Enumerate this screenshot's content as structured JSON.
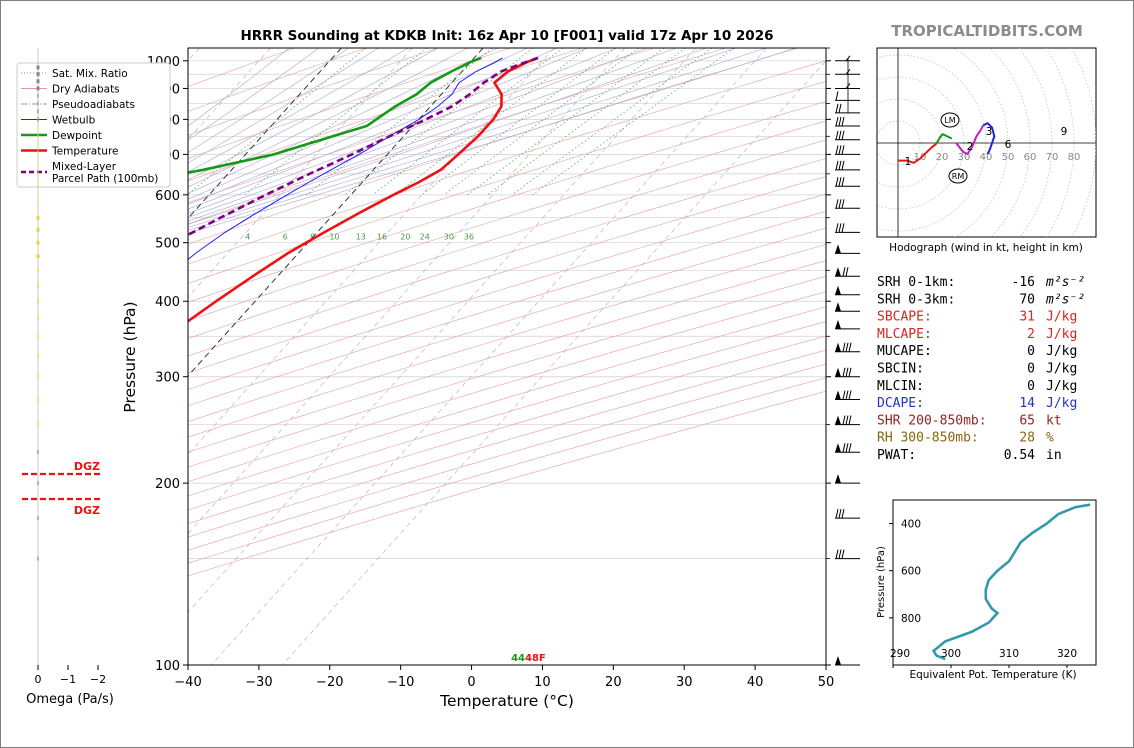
{
  "title": "HRRR Sounding at KDKB Init: 16z Apr 10 [F001] valid 17z Apr 10 2026",
  "watermark": "TROPICALTIDBITS.COM",
  "chart_data": [
    {
      "type": "line",
      "name": "skew-t",
      "xlabel": "Temperature (°C)",
      "ylabel": "Pressure (hPa)",
      "xlim": [
        -40,
        50
      ],
      "ylim": [
        1050,
        100
      ],
      "y_scale": "log",
      "x_ticks": [
        -40,
        -30,
        -20,
        -10,
        0,
        10,
        20,
        30,
        40,
        50
      ],
      "x_tick_labels": [
        "−40",
        "−30",
        "−20",
        "−10",
        "0",
        "10",
        "20",
        "30",
        "40",
        "50"
      ],
      "y_ticks": [
        100,
        200,
        300,
        400,
        500,
        600,
        700,
        800,
        900,
        1000
      ],
      "mixing_ratio_labels": [
        "1",
        "2",
        "4",
        "6",
        "8",
        "10",
        "13",
        "16",
        "20",
        "24",
        "30",
        "36"
      ],
      "legend": {
        "position": "top-left",
        "entries": [
          {
            "label": "Sat. Mix. Ratio",
            "color": "#6aa56a",
            "style": "dotted"
          },
          {
            "label": "Dry Adiabats",
            "color": "#e39a9a",
            "style": "solid"
          },
          {
            "label": "Pseudoadiabats",
            "color": "#9a9a9a",
            "style": "dashdot"
          },
          {
            "label": "Wetbulb",
            "color": "#1f1fff",
            "style": "solid"
          },
          {
            "label": "Dewpoint",
            "color": "#159915",
            "style": "solid"
          },
          {
            "label": "Temperature",
            "color": "#ee1111",
            "style": "solid"
          },
          {
            "label": "Mixed-Layer\nParcel Path (100mb)",
            "color": "#800080",
            "style": "dashed"
          }
        ]
      },
      "series": [
        {
          "name": "Temperature",
          "color": "#ee1111",
          "points": [
            [
              1011,
              9
            ],
            [
              995,
              8
            ],
            [
              960,
              6.5
            ],
            [
              920,
              6
            ],
            [
              880,
              8.5
            ],
            [
              840,
              10
            ],
            [
              800,
              10.5
            ],
            [
              750,
              10.5
            ],
            [
              700,
              10
            ],
            [
              660,
              9.5
            ],
            [
              630,
              8
            ],
            [
              600,
              6
            ],
            [
              560,
              3.5
            ],
            [
              520,
              1
            ],
            [
              480,
              -1.5
            ],
            [
              440,
              -3.5
            ],
            [
              400,
              -5.5
            ],
            [
              360,
              -7.5
            ],
            [
              320,
              -9
            ],
            [
              300,
              -10
            ],
            [
              280,
              -11
            ],
            [
              260,
              -12
            ],
            [
              240,
              -13.5
            ],
            [
              220,
              -15.5
            ],
            [
              200,
              -17
            ],
            [
              180,
              -14.5
            ],
            [
              160,
              -11
            ],
            [
              140,
              -10.5
            ],
            [
              120,
              -11
            ],
            [
              100,
              -10.5
            ]
          ]
        },
        {
          "name": "Dewpoint",
          "color": "#159915",
          "points": [
            [
              1011,
              1
            ],
            [
              995,
              0
            ],
            [
              960,
              -1.5
            ],
            [
              920,
              -3
            ],
            [
              880,
              -3.5
            ],
            [
              840,
              -5
            ],
            [
              800,
              -6
            ],
            [
              780,
              -6.5
            ],
            [
              750,
              -10
            ],
            [
              700,
              -16
            ],
            [
              660,
              -24
            ],
            [
              630,
              -32
            ],
            [
              600,
              -33
            ],
            [
              560,
              -31
            ],
            [
              520,
              -32
            ],
            [
              480,
              -32.5
            ],
            [
              440,
              -32.5
            ],
            [
              400,
              -32
            ],
            [
              360,
              -31
            ],
            [
              330,
              -31
            ],
            [
              300,
              -31.5
            ],
            [
              280,
              -32
            ],
            [
              260,
              -28
            ],
            [
              240,
              -27
            ],
            [
              220,
              -27.5
            ],
            [
              200,
              -28
            ],
            [
              180,
              -26
            ],
            [
              160,
              -28
            ],
            [
              140,
              -31
            ],
            [
              120,
              -30
            ],
            [
              100,
              -26
            ]
          ]
        },
        {
          "name": "Wetbulb",
          "color": "#1f1fff",
          "points": [
            [
              1011,
              4
            ],
            [
              995,
              3.5
            ],
            [
              960,
              2
            ],
            [
              920,
              1
            ],
            [
              880,
              1.5
            ],
            [
              840,
              1
            ],
            [
              800,
              0
            ],
            [
              750,
              -2
            ],
            [
              700,
              -4
            ],
            [
              660,
              -6
            ],
            [
              630,
              -7.5
            ],
            [
              600,
              -9
            ],
            [
              560,
              -11
            ],
            [
              520,
              -13
            ],
            [
              480,
              -14.5
            ],
            [
              440,
              -15.5
            ],
            [
              400,
              -16.5
            ],
            [
              360,
              -17.5
            ],
            [
              320,
              -17.5
            ],
            [
              300,
              -17.5
            ],
            [
              280,
              -17.5
            ],
            [
              260,
              -16
            ],
            [
              240,
              -14.5
            ],
            [
              220,
              -15.5
            ],
            [
              200,
              -17
            ],
            [
              180,
              -14.5
            ],
            [
              160,
              -11.5
            ],
            [
              140,
              -11
            ],
            [
              120,
              -11
            ],
            [
              100,
              -11
            ]
          ]
        },
        {
          "name": "Mixed-Layer\nParcel Path (100mb)",
          "color": "#800080",
          "style": "dashed",
          "points": [
            [
              1011,
              9
            ],
            [
              990,
              7.5
            ],
            [
              960,
              5.5
            ],
            [
              920,
              4.5
            ],
            [
              880,
              4
            ],
            [
              840,
              3
            ],
            [
              800,
              1
            ],
            [
              750,
              -2
            ],
            [
              700,
              -5
            ],
            [
              650,
              -8.5
            ],
            [
              600,
              -12
            ],
            [
              550,
              -15.5
            ],
            [
              500,
              -19
            ],
            [
              450,
              -23
            ],
            [
              400,
              -27.5
            ],
            [
              350,
              -32
            ],
            [
              300,
              -37
            ],
            [
              250,
              -43
            ],
            [
              200,
              -49
            ]
          ]
        }
      ],
      "surface_label": "44",
      "surface_label_temp": "48F",
      "dgz_label": "DGZ"
    },
    {
      "type": "bar",
      "name": "omega",
      "xlabel": "Omega (Pa/s)",
      "x_ticks": [
        "0",
        "−1",
        "−2"
      ]
    },
    {
      "type": "line",
      "name": "hodograph",
      "xlabel": "Hodograph (wind in kt, height in km)",
      "ring_labels": [
        "10",
        "20",
        "30",
        "40",
        "50",
        "60",
        "70",
        "80"
      ],
      "height_labels": [
        "1",
        "2",
        "3",
        "6",
        "9"
      ],
      "storm_motion_labels": [
        "LM",
        "RM"
      ]
    },
    {
      "type": "line",
      "name": "theta-e",
      "xlabel": "Equivalent Pot. Temperature (K)",
      "ylabel": "Pressure (hPa)",
      "x_ticks": [
        "290",
        "300",
        "310",
        "320"
      ],
      "y_ticks": [
        "400",
        "600",
        "800"
      ],
      "ylim": [
        1000,
        300
      ],
      "xlim": [
        290,
        325
      ],
      "color": "#3399aa",
      "points": [
        [
          975,
          299
        ],
        [
          960,
          297.5
        ],
        [
          940,
          297
        ],
        [
          900,
          299
        ],
        [
          860,
          303.5
        ],
        [
          820,
          306.5
        ],
        [
          780,
          308
        ],
        [
          760,
          307
        ],
        [
          720,
          306
        ],
        [
          680,
          306
        ],
        [
          640,
          306.5
        ],
        [
          600,
          308
        ],
        [
          560,
          310
        ],
        [
          520,
          311
        ],
        [
          480,
          312
        ],
        [
          440,
          314
        ],
        [
          400,
          316.5
        ],
        [
          360,
          318.5
        ],
        [
          330,
          321.5
        ],
        [
          320,
          324
        ]
      ]
    }
  ],
  "indices": [
    {
      "label": "SRH 0-1km:",
      "value": "-16",
      "unit": "m²s⁻²",
      "color": "#000000"
    },
    {
      "label": "SRH 0-3km:",
      "value": "70",
      "unit": "m²s⁻²",
      "color": "#000000"
    },
    {
      "label": "SBCAPE:",
      "value": "31",
      "unit": "J/kg",
      "color": "#dd2222"
    },
    {
      "label": "MLCAPE:",
      "value": "2",
      "unit": "J/kg",
      "color": "#dd2222"
    },
    {
      "label": "MUCAPE:",
      "value": "0",
      "unit": "J/kg",
      "color": "#000000"
    },
    {
      "label": "SBCIN:",
      "value": "0",
      "unit": "J/kg",
      "color": "#000000"
    },
    {
      "label": "MLCIN:",
      "value": "0",
      "unit": "J/kg",
      "color": "#000000"
    },
    {
      "label": "DCAPE:",
      "value": "14",
      "unit": "J/kg",
      "color": "#2233cc"
    },
    {
      "label": "SHR 200-850mb:",
      "value": "65",
      "unit": "kt",
      "color": "#992222"
    },
    {
      "label": "RH 300-850mb:",
      "value": "28",
      "unit": "%",
      "color": "#886611"
    },
    {
      "label": "PWAT:",
      "value": "0.54",
      "unit": "in",
      "color": "#000000"
    }
  ]
}
